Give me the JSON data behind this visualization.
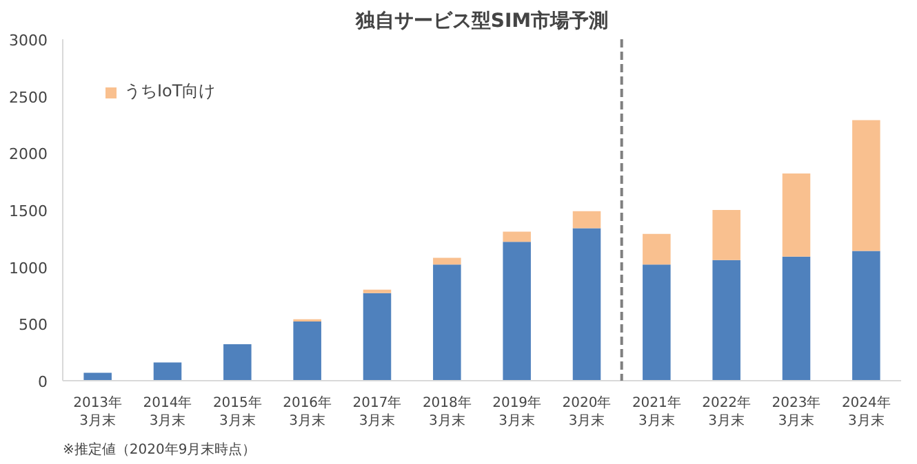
{
  "chart_data": {
    "type": "bar",
    "stacked": true,
    "title": "独自サービス型SIM市場予測",
    "categories": [
      "2013年\n3月末",
      "2014年\n3月末",
      "2015年\n3月末",
      "2016年\n3月末",
      "2017年\n3月末",
      "2018年\n3月末",
      "2019年\n3月末",
      "2020年\n3月末",
      "2021年\n3月末",
      "2022年\n3月末",
      "2023年\n3月末",
      "2024年\n3月末"
    ],
    "series": [
      {
        "color": "#4f81bd",
        "values": [
          70,
          160,
          320,
          520,
          770,
          1020,
          1220,
          1340,
          1020,
          1060,
          1090,
          1140
        ]
      },
      {
        "name": "うちIoT向け",
        "color": "#f9c08f",
        "values": [
          null,
          null,
          null,
          20,
          30,
          60,
          90,
          150,
          270,
          440,
          730,
          1150
        ]
      }
    ],
    "ylim": [
      0,
      3000
    ],
    "yticks": [
      0,
      500,
      1000,
      1500,
      2000,
      2500,
      3000
    ],
    "grid": false,
    "legend": "top left",
    "annotations": [
      "※推定値（2020年9月末時点）"
    ]
  }
}
